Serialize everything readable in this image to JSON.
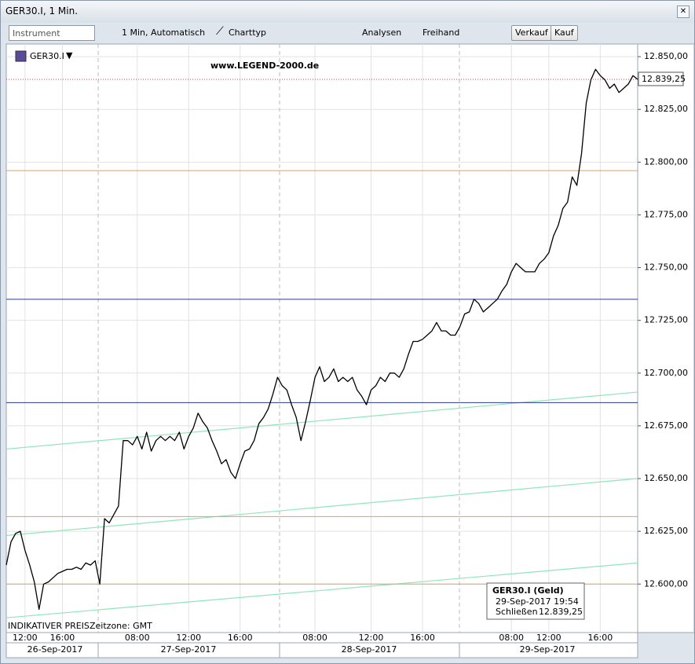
{
  "window": {
    "title": "GER30.I, 1 Min."
  },
  "toolbar": {
    "instrument": "Instrument",
    "interval": "1 Min,  Automatisch",
    "chart_type": "Charttyp",
    "analyses": "Analysen",
    "freehand": "Freihand",
    "sell": "Verkauf",
    "buy": "Kauf"
  },
  "chart_data": {
    "type": "line",
    "instrument_label": "GER30.I",
    "watermark": "www.LEGEND-2000.de",
    "footer_note": "INDIKATIVER PREIS",
    "timezone": "Zeitzone: GMT",
    "color": "#000000",
    "categories": [
      null,
      null,
      null,
      null,
      "12:00",
      null,
      null,
      null,
      null,
      null,
      null,
      null,
      "16:00",
      null,
      null,
      null,
      null,
      null,
      null,
      null,
      null,
      null,
      null,
      null,
      null,
      null,
      null,
      null,
      "08:00",
      null,
      null,
      null,
      null,
      null,
      null,
      null,
      null,
      null,
      null,
      "12:00",
      null,
      null,
      null,
      null,
      null,
      null,
      null,
      null,
      null,
      null,
      "16:00",
      null,
      null,
      null,
      null,
      null,
      null,
      null,
      null,
      null,
      null,
      null,
      null,
      null,
      null,
      null,
      "08:00",
      null,
      null,
      null,
      null,
      null,
      null,
      null,
      null,
      null,
      null,
      null,
      "12:00",
      null,
      null,
      null,
      null,
      null,
      null,
      null,
      null,
      null,
      null,
      "16:00",
      null,
      null,
      null,
      null,
      null,
      null,
      null,
      null,
      null,
      null,
      null,
      null,
      null,
      null,
      null,
      null,
      null,
      null,
      "08:00",
      null,
      null,
      null,
      null,
      null,
      null,
      null,
      "12:00",
      null,
      null,
      null,
      null,
      null,
      null,
      null,
      null,
      null,
      null,
      "16:00",
      null,
      null,
      null,
      null,
      null,
      null,
      null,
      null
    ],
    "values": [
      12609,
      12620,
      12624,
      12625,
      12616,
      12609,
      12601,
      12588,
      12600,
      12601,
      12603,
      12605,
      12606,
      12607,
      12607,
      12608,
      12607,
      12610,
      12609,
      12611,
      12600,
      12631,
      12629,
      12633,
      12637,
      12668,
      12668,
      12666,
      12670,
      12664,
      12672,
      12663,
      12668,
      12670,
      12668,
      12670,
      12668,
      12672,
      12664,
      12670,
      12674,
      12681,
      12677,
      12674,
      12668,
      12663,
      12657,
      12659,
      12653,
      12650,
      12657,
      12663,
      12664,
      12668,
      12676,
      12679,
      12683,
      12690,
      12698,
      12694,
      12692,
      12685,
      12679,
      12668,
      12677,
      12687,
      12698,
      12703,
      12696,
      12698,
      12702,
      12696,
      12698,
      12696,
      12698,
      12692,
      12689,
      12685,
      12692,
      12694,
      12698,
      12696,
      12700,
      12700,
      12698,
      12702,
      12709,
      12715,
      12715,
      12716,
      12718,
      12720,
      12724,
      12720,
      12720,
      12718,
      12718,
      12722,
      12728,
      12729,
      12735,
      12733,
      12729,
      12731,
      12733,
      12735,
      12739,
      12742,
      12748,
      12752,
      12750,
      12748,
      12748,
      12748,
      12752,
      12754,
      12757,
      12765,
      12770,
      12778,
      12781,
      12793,
      12789,
      12804,
      12828,
      12839,
      12844,
      12841,
      12839,
      12835,
      12837,
      12833,
      12835,
      12837,
      12841,
      12839.25
    ],
    "date_labels": [
      "26-Sep-2017",
      "27-Sep-2017",
      "28-Sep-2017",
      "29-Sep-2017"
    ],
    "ylim": [
      12577,
      12856
    ],
    "yticks": [
      {
        "value": 12850,
        "label": "12.850,00"
      },
      {
        "value": 12825,
        "label": "12.825,00"
      },
      {
        "value": 12800,
        "label": "12.800,00"
      },
      {
        "value": 12775,
        "label": "12.775,00"
      },
      {
        "value": 12750,
        "label": "12.750,00"
      },
      {
        "value": 12725,
        "label": "12.725,00"
      },
      {
        "value": 12700,
        "label": "12.700,00"
      },
      {
        "value": 12675,
        "label": "12.675,00"
      },
      {
        "value": 12650,
        "label": "12.650,00"
      },
      {
        "value": 12625,
        "label": "12.625,00"
      },
      {
        "value": 12600,
        "label": "12.600,00"
      }
    ],
    "grid": true,
    "horizontal_lines": [
      {
        "value": 12735,
        "color": "#2a3a8c"
      },
      {
        "value": 12686,
        "color": "#2a3a8c"
      },
      {
        "value": 12796,
        "color": "#e0a060"
      },
      {
        "value": 12632,
        "color": "#e0a060"
      },
      {
        "value": 12600,
        "color": "#e0a060"
      }
    ],
    "trend_lines": [
      {
        "values": [
          12664,
          12691
        ],
        "color": "#8fe6b8"
      },
      {
        "values": [
          12623,
          12650
        ],
        "color": "#8fe6b8"
      },
      {
        "values": [
          12584,
          12610
        ],
        "color": "#8fe6b8"
      }
    ],
    "current_price": {
      "value": 12839.25,
      "label": "12.839,25",
      "color": "#c04040"
    },
    "tooltip": {
      "title": "GER30.I (Geld)",
      "time": "29-Sep-2017 19:54",
      "close_label": "Schließen",
      "close": "12.839,25"
    }
  }
}
